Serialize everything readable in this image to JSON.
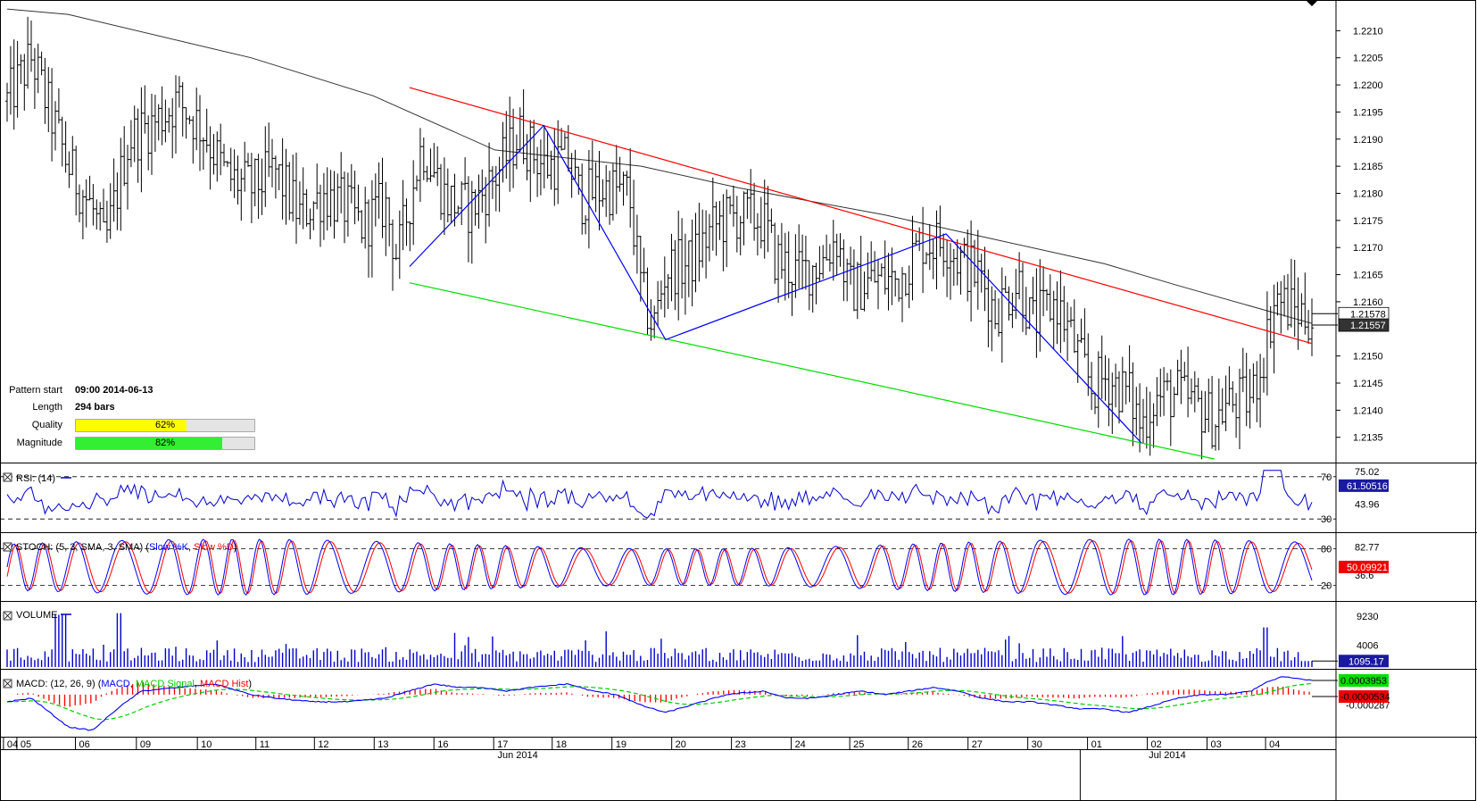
{
  "pattern_info": {
    "pattern_start_label": "Pattern start",
    "pattern_start_value": "09:00 2014-06-13",
    "length_label": "Length",
    "length_value": "294 bars",
    "quality_label": "Quality",
    "quality_text": "62%",
    "quality_value": 62,
    "quality_color": "#ffff00",
    "magnitude_label": "Magnitude",
    "magnitude_text": "82%",
    "magnitude_value": 82,
    "magnitude_color": "#33ee33"
  },
  "chart_data": {
    "type": "ohlc",
    "price_panel": {
      "y_ticks": [
        "1.2210",
        "1.2205",
        "1.2200",
        "1.2195",
        "1.2190",
        "1.2185",
        "1.2180",
        "1.2175",
        "1.2170",
        "1.2165",
        "1.2160",
        "1.2150",
        "1.2145",
        "1.2140",
        "1.2135"
      ],
      "y_range": [
        1.2131,
        1.2215
      ],
      "price_tags": [
        {
          "text": "1.21578",
          "value": 1.21578,
          "bg": "#ffffff",
          "fg": "#000000"
        },
        {
          "text": "1.21557",
          "value": 1.21557,
          "bg": "#333333",
          "fg": "#ffffff"
        }
      ],
      "close_series": [
        {
          "t": 0,
          "c": 1.2197
        },
        {
          "t": 2,
          "c": 1.2205
        },
        {
          "t": 5,
          "c": 1.2185
        },
        {
          "t": 7,
          "c": 1.2177
        },
        {
          "t": 8,
          "c": 1.217
        },
        {
          "t": 10,
          "c": 1.219
        },
        {
          "t": 12,
          "c": 1.2193
        },
        {
          "t": 14,
          "c": 1.2197
        },
        {
          "t": 16,
          "c": 1.2192
        },
        {
          "t": 18,
          "c": 1.2183
        },
        {
          "t": 20,
          "c": 1.2181
        },
        {
          "t": 22,
          "c": 1.2184
        },
        {
          "t": 24,
          "c": 1.2176
        },
        {
          "t": 26,
          "c": 1.218
        },
        {
          "t": 28,
          "c": 1.2177
        },
        {
          "t": 29,
          "c": 1.2174
        },
        {
          "t": 31,
          "c": 1.2178
        },
        {
          "t": 32,
          "c": 1.2168
        },
        {
          "t": 34,
          "c": 1.2189
        },
        {
          "t": 36,
          "c": 1.2179
        },
        {
          "t": 38,
          "c": 1.2177
        },
        {
          "t": 40,
          "c": 1.2183
        },
        {
          "t": 42,
          "c": 1.2191
        },
        {
          "t": 44,
          "c": 1.2185
        },
        {
          "t": 46,
          "c": 1.2186
        },
        {
          "t": 47,
          "c": 1.2179
        },
        {
          "t": 49,
          "c": 1.2181
        },
        {
          "t": 51,
          "c": 1.218
        },
        {
          "t": 52,
          "c": 1.2162
        },
        {
          "t": 53,
          "c": 1.2155
        },
        {
          "t": 54,
          "c": 1.2166
        },
        {
          "t": 56,
          "c": 1.2167
        },
        {
          "t": 58,
          "c": 1.2174
        },
        {
          "t": 60,
          "c": 1.2176
        },
        {
          "t": 62,
          "c": 1.2175
        },
        {
          "t": 63,
          "c": 1.2168
        },
        {
          "t": 65,
          "c": 1.2165
        },
        {
          "t": 67,
          "c": 1.2168
        },
        {
          "t": 68,
          "c": 1.2172
        },
        {
          "t": 69,
          "c": 1.2162
        },
        {
          "t": 71,
          "c": 1.2164
        },
        {
          "t": 73,
          "c": 1.2164
        },
        {
          "t": 75,
          "c": 1.2171
        },
        {
          "t": 77,
          "c": 1.2171
        },
        {
          "t": 78,
          "c": 1.2168
        },
        {
          "t": 80,
          "c": 1.2164
        },
        {
          "t": 81,
          "c": 1.2158
        },
        {
          "t": 83,
          "c": 1.2164
        },
        {
          "t": 84,
          "c": 1.2156
        },
        {
          "t": 86,
          "c": 1.216
        },
        {
          "t": 87,
          "c": 1.2155
        },
        {
          "t": 88,
          "c": 1.2149
        },
        {
          "t": 89,
          "c": 1.2144
        },
        {
          "t": 90,
          "c": 1.2146
        },
        {
          "t": 92,
          "c": 1.2143
        },
        {
          "t": 93,
          "c": 1.2137
        },
        {
          "t": 94,
          "c": 1.2142
        },
        {
          "t": 96,
          "c": 1.2143
        },
        {
          "t": 98,
          "c": 1.214
        },
        {
          "t": 99,
          "c": 1.2138
        },
        {
          "t": 100,
          "c": 1.2141
        },
        {
          "t": 102,
          "c": 1.2142
        },
        {
          "t": 103,
          "c": 1.215
        },
        {
          "t": 104,
          "c": 1.2161
        },
        {
          "t": 105,
          "c": 1.2159
        },
        {
          "t": 107,
          "c": 1.2157
        }
      ]
    },
    "overlays": {
      "channel_upper": {
        "color": "#ff0000",
        "from": {
          "t": 33,
          "value": 1.21995
        },
        "to": {
          "t": 107,
          "value": 1.21523
        }
      },
      "channel_lower": {
        "color": "#00dd00",
        "from": {
          "t": 33,
          "value": 1.21635
        },
        "to": {
          "t": 99,
          "value": 1.2131
        }
      },
      "zigzag": {
        "color": "#0000ff",
        "points": [
          {
            "t": 33,
            "value": 1.21665
          },
          {
            "t": 44,
            "value": 1.21925
          },
          {
            "t": 54,
            "value": 1.2153
          },
          {
            "t": 77,
            "value": 1.21725
          },
          {
            "t": 93,
            "value": 1.2134
          }
        ]
      },
      "moving_average": {
        "color": "#333333",
        "points": [
          {
            "t": 0,
            "value": 1.2214
          },
          {
            "t": 5,
            "value": 1.2213
          },
          {
            "t": 20,
            "value": 1.2205
          },
          {
            "t": 30,
            "value": 1.2198
          },
          {
            "t": 40,
            "value": 1.2188
          },
          {
            "t": 52,
            "value": 1.2185
          },
          {
            "t": 60,
            "value": 1.2181
          },
          {
            "t": 72,
            "value": 1.2176
          },
          {
            "t": 80,
            "value": 1.2172
          },
          {
            "t": 90,
            "value": 1.2167
          },
          {
            "t": 96,
            "value": 1.2163
          },
          {
            "t": 107,
            "value": 1.2156
          }
        ]
      }
    },
    "rsi": {
      "label": "RSI: (14)",
      "line_color": "#0000cc",
      "levels": [
        70,
        30
      ],
      "level_labels": [
        "70",
        "30"
      ],
      "axis_labels": [
        {
          "text": "75.02",
          "value": 75.02
        },
        {
          "text": "43.96",
          "value": 43.96
        }
      ],
      "range": [
        20,
        80
      ],
      "current_text": "61.50516",
      "current_value": 61.50516,
      "tag_bg": "#1a1aa0"
    },
    "stoch": {
      "label_prefix": "STOCH: (5, 3, SMA, 3, SMA) (",
      "k_name": "Slow %K",
      "d_name": "Slow %D",
      "label_suffix": ")",
      "k_color": "#0000ff",
      "d_color": "#ff0000",
      "levels": [
        80,
        20
      ],
      "level_labels": [
        "80",
        "20"
      ],
      "axis_labels": [
        {
          "text": "82.77",
          "value": 82.77
        },
        {
          "text": "36.6",
          "value": 36.6
        }
      ],
      "current_text": "50.09921",
      "current_value": 50.09921,
      "tag_bg": "#ee0000"
    },
    "volume": {
      "label": "VOLUME",
      "bar_color": "#0000cc",
      "axis_labels": [
        {
          "text": "9230",
          "value": 9230
        },
        {
          "text": "4006",
          "value": 4006
        }
      ],
      "range": [
        0,
        11200
      ],
      "current_text": "1095.17",
      "current_value": 1095.17,
      "tag_bg": "#1a1aa0"
    },
    "macd": {
      "label_prefix": "MACD: (12, 26, 9) (",
      "macd_name": "MACD",
      "signal_name": "MACD Signal",
      "hist_name": "MACD Hist",
      "label_suffix": ")",
      "macd_color": "#0000ff",
      "signal_color": "#00cc00",
      "hist_color": "#ff0000",
      "axis_labels": [
        {
          "text": "-0.000287",
          "value": -0.000287
        }
      ],
      "range": [
        -0.0011,
        0.00062
      ],
      "tags": [
        {
          "text": "0.0003953",
          "value": 0.0003953,
          "bg": "#00dd00",
          "fg": "#000000"
        },
        {
          "text": "-0.0000534",
          "value": -5.34e-05,
          "bg": "#ee0000",
          "fg": "#000000"
        }
      ]
    },
    "x_axis": {
      "day_labels": [
        {
          "text": "04",
          "t": -0.3
        },
        {
          "text": "05",
          "t": 0.8
        },
        {
          "text": "06",
          "t": 5.6
        },
        {
          "text": "09",
          "t": 10.6
        },
        {
          "text": "10",
          "t": 15.6
        },
        {
          "text": "11",
          "t": 20.4
        },
        {
          "text": "12",
          "t": 25.2
        },
        {
          "text": "13",
          "t": 30.1
        },
        {
          "text": "16",
          "t": 35.0
        },
        {
          "text": "17",
          "t": 39.9
        },
        {
          "text": "18",
          "t": 44.7
        },
        {
          "text": "19",
          "t": 49.6
        },
        {
          "text": "20",
          "t": 54.5
        },
        {
          "text": "23",
          "t": 59.4
        },
        {
          "text": "24",
          "t": 64.3
        },
        {
          "text": "25",
          "t": 69.1
        },
        {
          "text": "26",
          "t": 73.9
        },
        {
          "text": "27",
          "t": 78.8
        },
        {
          "text": "30",
          "t": 83.7
        },
        {
          "text": "01",
          "t": 88.6
        },
        {
          "text": "02",
          "t": 93.5
        },
        {
          "text": "03",
          "t": 98.4
        },
        {
          "text": "04",
          "t": 103.2
        }
      ],
      "month_labels": [
        {
          "text": "Jun 2014",
          "t": 41.9
        },
        {
          "text": "Jul 2014",
          "t": 95.3
        }
      ],
      "month_divider_t": 88.0
    }
  }
}
